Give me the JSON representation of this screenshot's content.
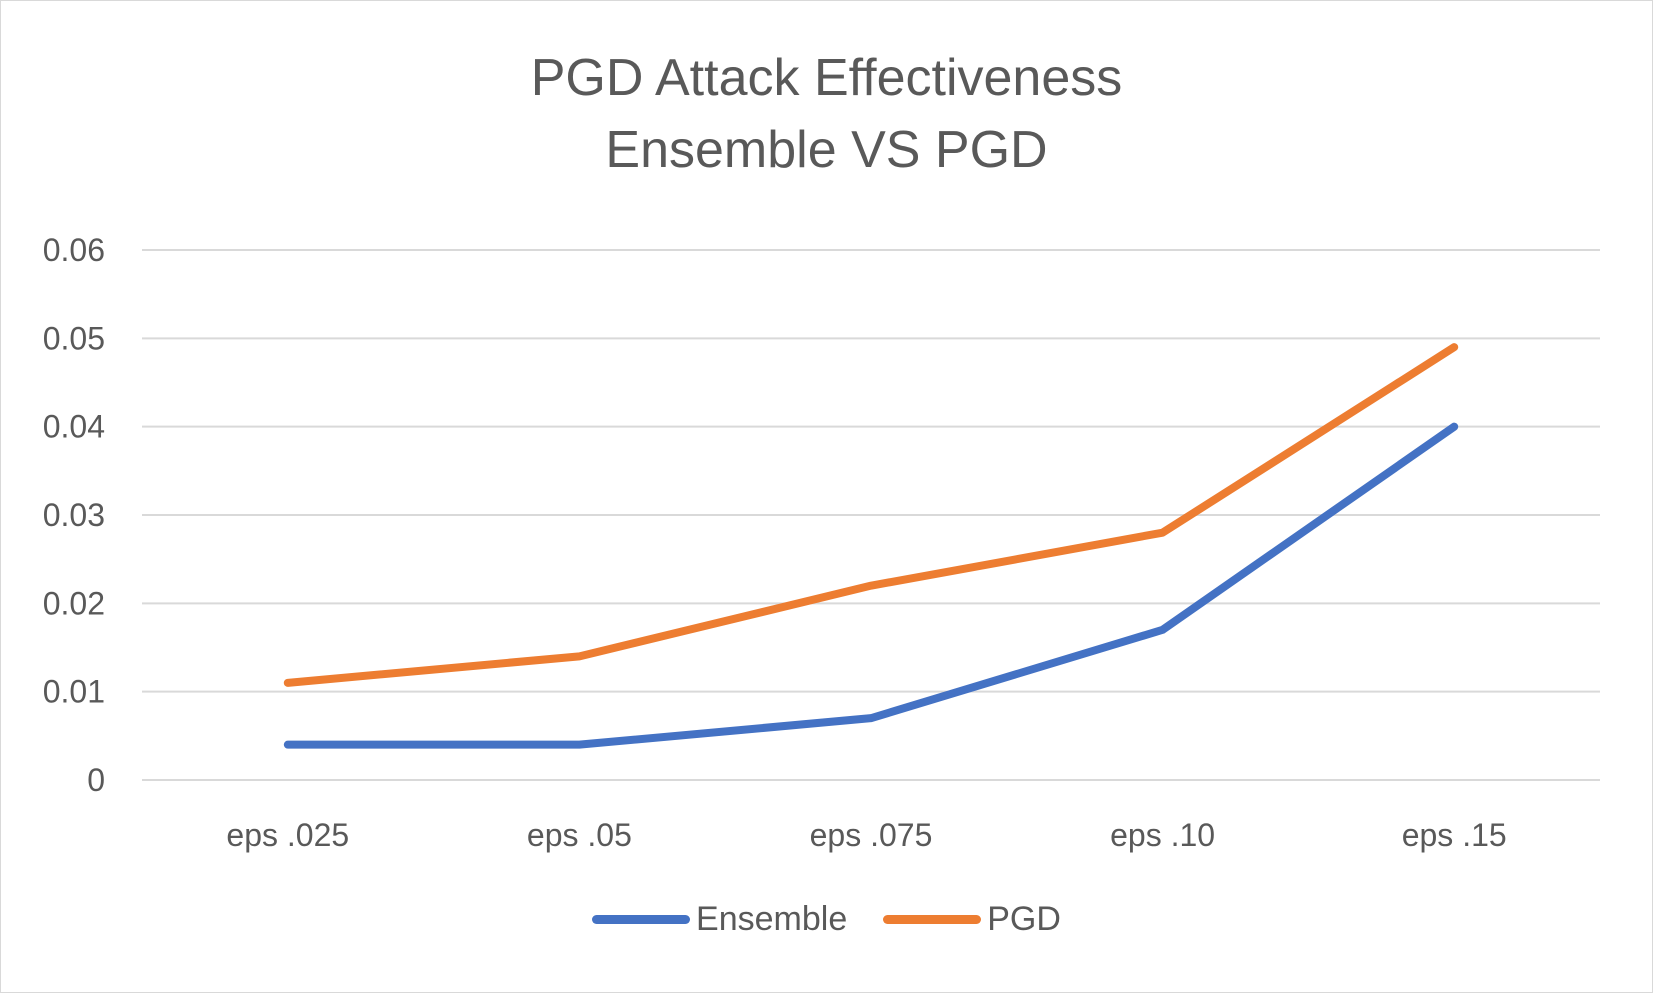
{
  "chart_data": {
    "type": "line",
    "title_lines": [
      "PGD Attack Effectiveness",
      "Ensemble VS PGD"
    ],
    "categories": [
      "eps .025",
      "eps .05",
      "eps .075",
      "eps .10",
      "eps .15"
    ],
    "series": [
      {
        "name": "Ensemble",
        "color": "#4472C4",
        "values": [
          0.004,
          0.004,
          0.007,
          0.017,
          0.04
        ]
      },
      {
        "name": "PGD",
        "color": "#ED7D31",
        "values": [
          0.011,
          0.014,
          0.022,
          0.028,
          0.049
        ]
      }
    ],
    "ylim": [
      0,
      0.06
    ],
    "y_ticks": [
      "0",
      "0.01",
      "0.02",
      "0.03",
      "0.04",
      "0.05",
      "0.06"
    ],
    "gridlines": true,
    "legend_position": "bottom"
  }
}
